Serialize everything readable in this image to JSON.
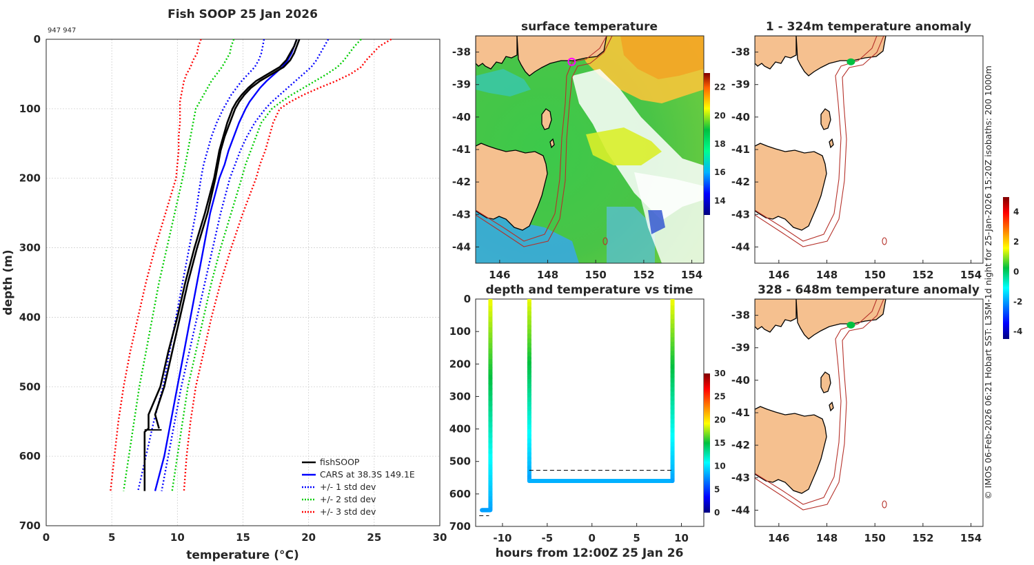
{
  "chart_data": [
    {
      "type": "line",
      "id": "profile",
      "title": "Fish SOOP 25 Jan 2026",
      "corner_note": "947 947",
      "xlabel": "temperature (°C)",
      "ylabel": "depth (m)",
      "xlim": [
        0,
        30
      ],
      "ylim": [
        700,
        0
      ],
      "xticks": [
        0,
        5,
        10,
        15,
        20,
        25,
        30
      ],
      "yticks": [
        0,
        100,
        200,
        300,
        400,
        500,
        600,
        700
      ],
      "depths": [
        0,
        10,
        20,
        30,
        40,
        50,
        60,
        70,
        80,
        90,
        100,
        120,
        140,
        160,
        180,
        200,
        250,
        300,
        350,
        400,
        450,
        500,
        550,
        600,
        650
      ],
      "series": [
        {
          "name": "CARS at 38.3S 149.1E",
          "color": "#0000ff",
          "style": "solid",
          "values": [
            19.1,
            18.9,
            18.7,
            18.4,
            18.0,
            17.4,
            16.8,
            16.3,
            15.9,
            15.5,
            15.2,
            14.7,
            14.3,
            13.9,
            13.6,
            13.2,
            12.5,
            12.0,
            11.5,
            11.0,
            10.5,
            10.0,
            9.5,
            9.0,
            8.3
          ]
        },
        {
          "name": "+/- 1 std dev",
          "color": "#0000ff",
          "style": "dotted",
          "values": [
            21.5,
            21.2,
            20.9,
            20.6,
            20.2,
            19.6,
            19.0,
            18.4,
            17.8,
            17.2,
            16.7,
            15.9,
            15.3,
            14.8,
            14.4,
            14.0,
            13.3,
            12.7,
            12.1,
            11.5,
            10.9,
            10.3,
            9.8,
            9.3,
            8.8
          ]
        },
        {
          "name": "+/- 1 std dev",
          "color": "#0000ff",
          "style": "dotted",
          "values": [
            16.6,
            16.5,
            16.4,
            16.2,
            15.9,
            15.4,
            14.9,
            14.5,
            14.1,
            13.8,
            13.5,
            13.0,
            12.6,
            12.3,
            12.0,
            11.8,
            11.4,
            10.9,
            10.4,
            9.9,
            9.4,
            8.9,
            8.2,
            7.6,
            7.0
          ]
        },
        {
          "name": "+/- 2 std dev",
          "color": "#00cc00",
          "style": "dotted",
          "values": [
            24.0,
            23.5,
            23.1,
            22.7,
            22.2,
            21.4,
            20.5,
            19.6,
            18.7,
            17.9,
            17.2,
            16.4,
            16.0,
            15.6,
            15.2,
            14.9,
            14.1,
            13.3,
            12.6,
            12.0,
            11.4,
            10.8,
            10.4,
            10.0,
            9.6
          ]
        },
        {
          "name": "+/- 2 std dev",
          "color": "#00cc00",
          "style": "dotted",
          "values": [
            14.3,
            14.1,
            14.0,
            13.7,
            13.4,
            13.0,
            12.6,
            12.3,
            12.0,
            11.7,
            11.4,
            11.2,
            11.0,
            10.8,
            10.6,
            10.4,
            9.8,
            9.2,
            8.6,
            8.1,
            7.6,
            7.1,
            6.7,
            6.3,
            5.9
          ]
        },
        {
          "name": "+/- 3 std dev",
          "color": "#ff0000",
          "style": "dotted",
          "values": [
            26.3,
            25.4,
            24.9,
            24.4,
            24.0,
            23.2,
            22.1,
            20.8,
            19.6,
            18.6,
            17.8,
            17.3,
            17.0,
            16.7,
            16.3,
            16.0,
            15.0,
            14.1,
            13.3,
            12.6,
            12.0,
            11.4,
            11.0,
            10.7,
            10.5
          ]
        },
        {
          "name": "+/- 3 std dev",
          "color": "#ff0000",
          "style": "dotted",
          "values": [
            11.8,
            11.6,
            11.5,
            11.2,
            11.0,
            10.7,
            10.5,
            10.4,
            10.3,
            10.2,
            10.2,
            10.2,
            10.1,
            10.1,
            10.0,
            9.9,
            9.1,
            8.3,
            7.6,
            7.0,
            6.4,
            5.9,
            5.5,
            5.2,
            4.9
          ]
        }
      ],
      "fishSOOP": [
        {
          "name": "fishSOOP",
          "color": "#000000",
          "depths": [
            0,
            10,
            20,
            30,
            40,
            50,
            60,
            70,
            80,
            90,
            100,
            120,
            140,
            160,
            180,
            200,
            250,
            300,
            350,
            400,
            450,
            500,
            540,
            560
          ],
          "values": [
            19.3,
            19.1,
            18.9,
            18.6,
            18.1,
            17.2,
            16.3,
            15.6,
            15.1,
            14.7,
            14.4,
            14.0,
            13.6,
            13.3,
            13.1,
            12.9,
            12.3,
            11.5,
            10.8,
            10.2,
            9.6,
            9.0,
            8.3,
            8.6
          ]
        },
        {
          "name": "fishSOOP",
          "color": "#000000",
          "depths": [
            0,
            10,
            20,
            30,
            40,
            50,
            60,
            70,
            80,
            90,
            100,
            120,
            140,
            160,
            180,
            200,
            250,
            300,
            350,
            400,
            450,
            500,
            540,
            560,
            565,
            650
          ],
          "values": [
            19.1,
            18.9,
            18.6,
            18.3,
            17.8,
            16.9,
            16.0,
            15.4,
            14.9,
            14.5,
            14.2,
            13.8,
            13.5,
            13.2,
            13.0,
            12.8,
            12.1,
            11.3,
            10.6,
            10.0,
            9.3,
            8.7,
            7.8,
            7.8,
            7.5,
            7.5
          ]
        }
      ],
      "legend": {
        "position": "bottom-right",
        "entries": [
          {
            "label": "fishSOOP",
            "color": "#000000",
            "style": "solid"
          },
          {
            "label": "CARS at 38.3S 149.1E",
            "color": "#0000ff",
            "style": "solid"
          },
          {
            "label": "+/- 1 std dev",
            "color": "#0000ff",
            "style": "dotted"
          },
          {
            "label": "+/- 2 std dev",
            "color": "#00cc00",
            "style": "dotted"
          },
          {
            "label": "+/- 3 std dev",
            "color": "#ff0000",
            "style": "dotted"
          }
        ]
      }
    },
    {
      "type": "heatmap",
      "id": "sst",
      "title": "surface temperature",
      "xlim": [
        145,
        154.5
      ],
      "ylim": [
        -44.5,
        -37.5
      ],
      "xticks": [
        146,
        148,
        150,
        152,
        154
      ],
      "yticks": [
        -38,
        -39,
        -40,
        -41,
        -42,
        -43,
        -44
      ],
      "colorbar": {
        "min": 13,
        "max": 23,
        "ticks": [
          14,
          16,
          18,
          20,
          22
        ]
      },
      "marker": {
        "lon": 149.0,
        "lat": -38.3,
        "color": "#ff00ff"
      }
    },
    {
      "type": "scatter",
      "id": "timeseries",
      "title": "depth and temperature vs time",
      "xlabel": "hours from 12:00Z 25 Jan 26",
      "xlim": [
        -13,
        12.5
      ],
      "ylim": [
        700,
        0
      ],
      "xticks": [
        -10,
        -5,
        0,
        5,
        10
      ],
      "yticks": [
        0,
        100,
        200,
        300,
        400,
        500,
        600,
        700
      ],
      "colorbar": {
        "min": 0,
        "max": 30,
        "ticks": [
          0,
          5,
          10,
          15,
          20,
          25,
          30
        ]
      },
      "segments": [
        {
          "hours": [
            -12.3,
            -11.4
          ],
          "depth": [
            650,
            650
          ],
          "temperature": [
            8,
            8
          ]
        },
        {
          "hours": [
            -11.35,
            -11.35
          ],
          "depth": [
            650,
            0
          ],
          "temperature": [
            8,
            19
          ]
        },
        {
          "hours": [
            -7.0,
            -7.0
          ],
          "depth": [
            0,
            560
          ],
          "temperature": [
            19,
            8
          ]
        },
        {
          "hours": [
            -7.0,
            9.0
          ],
          "depth": [
            560,
            560
          ],
          "temperature": [
            8.5,
            8.5
          ]
        },
        {
          "hours": [
            9.0,
            9.0
          ],
          "depth": [
            560,
            0
          ],
          "temperature": [
            8,
            19
          ]
        }
      ],
      "reference_lines": [
        {
          "depth": 527,
          "hours": [
            -7.0,
            9.0
          ]
        },
        {
          "depth": 667,
          "hours": [
            -12.6,
            -11.5
          ]
        }
      ]
    },
    {
      "type": "heatmap",
      "id": "anom1",
      "title": "1 - 324m temperature anomaly",
      "xlim": [
        145,
        154.5
      ],
      "ylim": [
        -44.5,
        -37.5
      ],
      "xticks": [
        146,
        148,
        150,
        152,
        154
      ],
      "yticks": [
        -38,
        -39,
        -40,
        -41,
        -42,
        -43,
        -44
      ],
      "marker": {
        "lon": 149.0,
        "lat": -38.3,
        "color": "#00c040",
        "anomaly": 0.3
      }
    },
    {
      "type": "heatmap",
      "id": "anom2",
      "title": "328 - 648m temperature anomaly",
      "xlim": [
        145,
        154.5
      ],
      "ylim": [
        -44.5,
        -37.5
      ],
      "xticks": [
        146,
        148,
        150,
        152,
        154
      ],
      "yticks": [
        -38,
        -39,
        -40,
        -41,
        -42,
        -43,
        -44
      ],
      "marker": {
        "lon": 149.0,
        "lat": -38.3,
        "color": "#00c040",
        "anomaly": 0.3
      }
    },
    {
      "type": "colorbar",
      "id": "anom_cb",
      "min": -4.5,
      "max": 5,
      "ticks": [
        -4,
        -2,
        0,
        2,
        4
      ]
    }
  ],
  "side_note": "© IMOS 06-Feb-2026 06:21 Hobart SST: L3SM-1d night for 25-Jan-2026 15:20Z isobaths: 200  1000m"
}
